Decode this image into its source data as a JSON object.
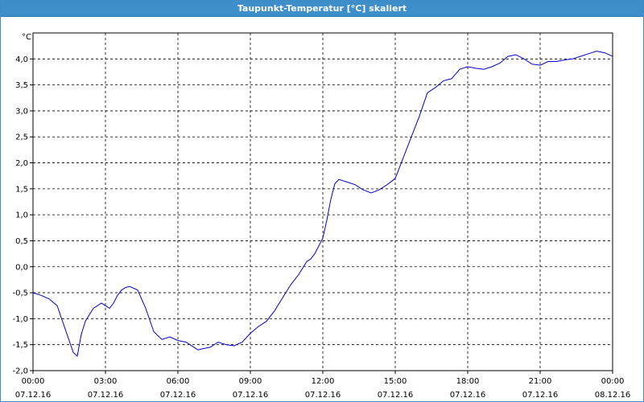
{
  "window": {
    "title": "Taupunkt-Temperatur [°C] skaliert"
  },
  "chart_data": {
    "type": "line",
    "title": "Taupunkt-Temperatur [°C] skaliert",
    "ylabel": "°C",
    "xlabel": "",
    "ylim": [
      -2.0,
      4.5
    ],
    "xlim": [
      "07.12.16 00:00",
      "08.12.16 00:00"
    ],
    "grid": true,
    "line_color": "#0000cc",
    "y_ticks": [
      "4,0",
      "3,5",
      "3,0",
      "2,5",
      "2,0",
      "1,5",
      "1,0",
      "0,5",
      "0,0",
      "-0,5",
      "-1,0",
      "-1,5",
      "-2,0"
    ],
    "x_ticks": [
      {
        "time": "00:00",
        "date": "07.12.16"
      },
      {
        "time": "03:00",
        "date": "07.12.16"
      },
      {
        "time": "06:00",
        "date": "07.12.16"
      },
      {
        "time": "09:00",
        "date": "07.12.16"
      },
      {
        "time": "12:00",
        "date": "07.12.16"
      },
      {
        "time": "15:00",
        "date": "07.12.16"
      },
      {
        "time": "18:00",
        "date": "07.12.16"
      },
      {
        "time": "21:00",
        "date": "07.12.16"
      },
      {
        "time": "00:00",
        "date": "08.12.16"
      }
    ],
    "series": [
      {
        "x": [
          "07.12.16 00:00",
          "07.12.16 00:20",
          "07.12.16 00:40",
          "07.12.16 01:00",
          "07.12.16 01:20",
          "07.12.16 01:40",
          "07.12.16 01:50",
          "07.12.16 02:00",
          "07.12.16 02:10",
          "07.12.16 02:30",
          "07.12.16 02:50",
          "07.12.16 03:00",
          "07.12.16 03:10",
          "07.12.16 03:20",
          "07.12.16 03:30",
          "07.12.16 03:40",
          "07.12.16 03:50",
          "07.12.16 04:00",
          "07.12.16 04:20",
          "07.12.16 04:40",
          "07.12.16 05:00",
          "07.12.16 05:20",
          "07.12.16 05:40",
          "07.12.16 06:00",
          "07.12.16 06:20",
          "07.12.16 06:40",
          "07.12.16 06:50",
          "07.12.16 07:00",
          "07.12.16 07:20",
          "07.12.16 07:40",
          "07.12.16 08:00",
          "07.12.16 08:20",
          "07.12.16 08:40",
          "07.12.16 09:00",
          "07.12.16 09:20",
          "07.12.16 09:40",
          "07.12.16 10:00",
          "07.12.16 10:20",
          "07.12.16 10:40",
          "07.12.16 11:00",
          "07.12.16 11:20",
          "07.12.16 11:30",
          "07.12.16 11:40",
          "07.12.16 12:00",
          "07.12.16 12:10",
          "07.12.16 12:20",
          "07.12.16 12:30",
          "07.12.16 12:40",
          "07.12.16 13:00",
          "07.12.16 13:20",
          "07.12.16 13:40",
          "07.12.16 14:00",
          "07.12.16 14:20",
          "07.12.16 14:40",
          "07.12.16 15:00",
          "07.12.16 15:20",
          "07.12.16 15:40",
          "07.12.16 16:00",
          "07.12.16 16:20",
          "07.12.16 16:30",
          "07.12.16 16:40",
          "07.12.16 17:00",
          "07.12.16 17:20",
          "07.12.16 17:40",
          "07.12.16 18:00",
          "07.12.16 18:20",
          "07.12.16 18:40",
          "07.12.16 19:00",
          "07.12.16 19:20",
          "07.12.16 19:40",
          "07.12.16 20:00",
          "07.12.16 20:20",
          "07.12.16 20:40",
          "07.12.16 21:00",
          "07.12.16 21:20",
          "07.12.16 21:40",
          "07.12.16 22:00",
          "07.12.16 22:20",
          "07.12.16 22:40",
          "07.12.16 23:00",
          "07.12.16 23:20",
          "07.12.16 23:40",
          "08.12.16 00:00"
        ],
        "y": [
          -0.5,
          -0.55,
          -0.62,
          -0.75,
          -1.2,
          -1.65,
          -1.72,
          -1.3,
          -1.05,
          -0.8,
          -0.7,
          -0.75,
          -0.8,
          -0.7,
          -0.55,
          -0.45,
          -0.4,
          -0.38,
          -0.45,
          -0.8,
          -1.25,
          -1.4,
          -1.35,
          -1.42,
          -1.45,
          -1.55,
          -1.6,
          -1.58,
          -1.55,
          -1.45,
          -1.5,
          -1.52,
          -1.45,
          -1.28,
          -1.15,
          -1.05,
          -0.85,
          -0.6,
          -0.35,
          -0.15,
          0.1,
          0.15,
          0.25,
          0.55,
          0.9,
          1.3,
          1.6,
          1.68,
          1.63,
          1.58,
          1.48,
          1.42,
          1.48,
          1.58,
          1.7,
          2.1,
          2.5,
          2.9,
          3.35,
          3.4,
          3.45,
          3.58,
          3.62,
          3.8,
          3.85,
          3.82,
          3.8,
          3.85,
          3.92,
          4.05,
          4.08,
          4.0,
          3.9,
          3.88,
          3.95,
          3.95,
          3.98,
          4.0,
          4.05,
          4.1,
          4.15,
          4.12,
          4.05
        ]
      }
    ]
  }
}
